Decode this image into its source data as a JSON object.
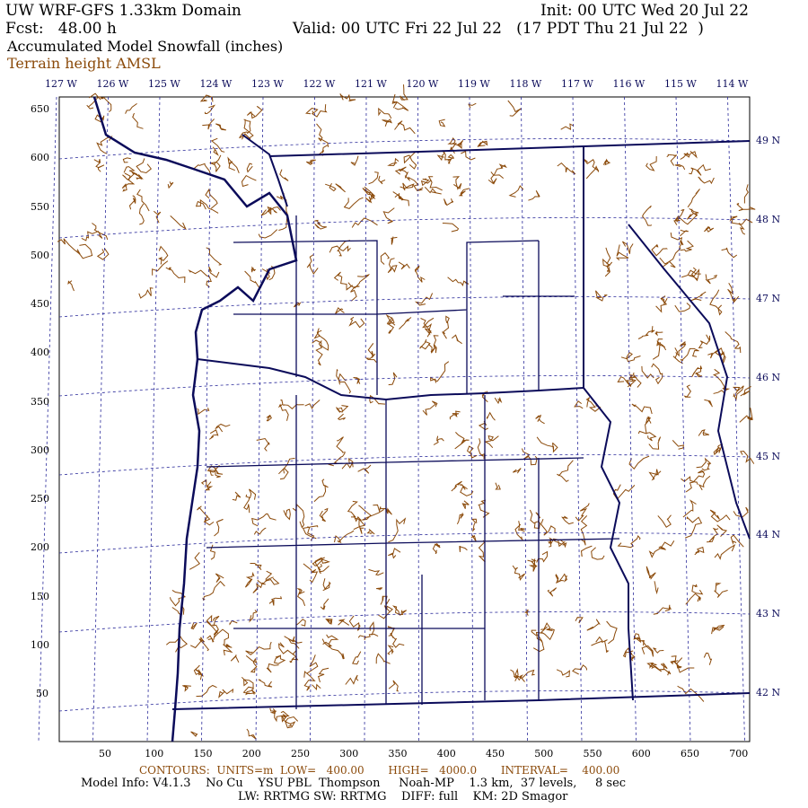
{
  "header": {
    "title": "UW WRF-GFS 1.33km Domain",
    "init": "Init: 00 UTC Wed 20 Jul 22",
    "fcst": "Fcst:   48.00 h",
    "valid": "Valid: 00 UTC Fri 22 Jul 22   (17 PDT Thu 21 Jul 22  )",
    "field": "Accumulated Model Snowfall (inches)",
    "overlay": "Terrain height AMSL"
  },
  "lon_labels": [
    "127 W",
    "126 W",
    "125 W",
    "124 W",
    "123 W",
    "122 W",
    "121 W",
    "120 W",
    "119 W",
    "118 W",
    "117 W",
    "116 W",
    "115 W",
    "114 W"
  ],
  "lat_labels": [
    "49 N",
    "48 N",
    "47 N",
    "46 N",
    "45 N",
    "44 N",
    "43 N",
    "42 N"
  ],
  "y_ticks": [
    "650",
    "600",
    "550",
    "500",
    "450",
    "400",
    "350",
    "300",
    "250",
    "200",
    "150",
    "100",
    "50"
  ],
  "x_ticks": [
    "50",
    "100",
    "150",
    "200",
    "250",
    "300",
    "350",
    "400",
    "450",
    "500",
    "550",
    "600",
    "650",
    "700"
  ],
  "footer": {
    "contours": "CONTOURS:  UNITS=m  LOW=   400.00       HIGH=   4000.0       INTERVAL=    400.00",
    "model_info": "Model Info: V4.1.3    No Cu    YSU PBL  Thompson     Noah-MP    1.3 km,  37 levels,     8 sec",
    "physics": "LW: RRTMG SW: RRTMG    DIFF: full    KM: 2D Smagor"
  },
  "colors": {
    "terrain_contour": "#8b4a0a",
    "borders": "#0b0b5a",
    "grid": "#2a2a9a"
  }
}
